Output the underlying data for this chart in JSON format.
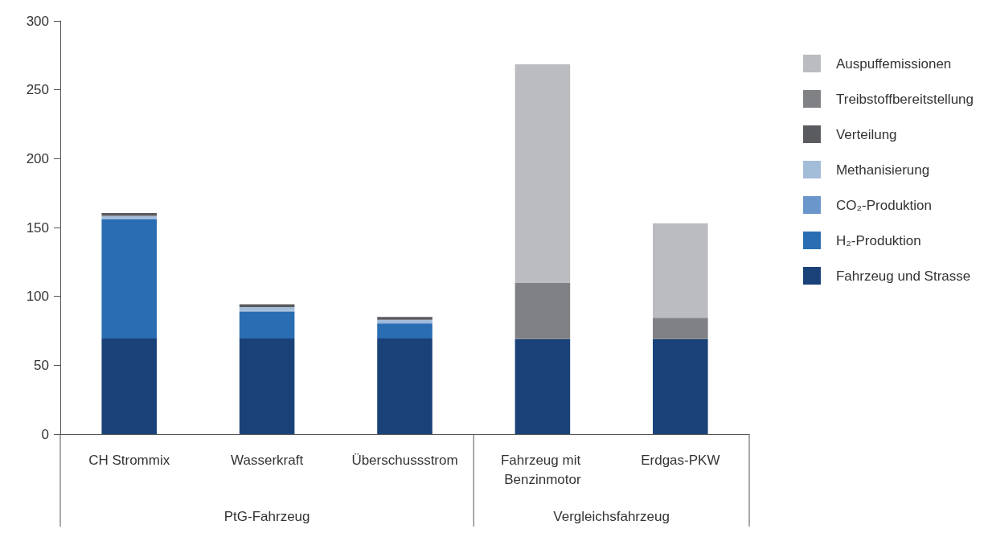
{
  "chart_data": {
    "type": "bar",
    "stacked": true,
    "categories": [
      "CH Strommix",
      "Wasserkraft",
      "Überschussstrom",
      "Fahrzeug mit Benzinmotor",
      "Erdgas-PKW"
    ],
    "series": [
      {
        "name": "Fahrzeug und Strasse",
        "color": "#1a4278",
        "values": [
          69.5,
          69.5,
          69.5,
          69,
          69
        ]
      },
      {
        "name": "H₂-Produktion",
        "color": "#2a6db2",
        "values": [
          86.5,
          19.5,
          10.5,
          null,
          null
        ]
      },
      {
        "name": "CO₂-Produktion",
        "color": "#6a96cc",
        "values": [
          0.5,
          0.5,
          1,
          null,
          null
        ]
      },
      {
        "name": "Methanisierung",
        "color": "#a3bcd8",
        "values": [
          2,
          2.7,
          2,
          null,
          null
        ]
      },
      {
        "name": "Verteilung",
        "color": "#5a5b5e",
        "values": [
          2,
          2,
          2,
          null,
          null
        ]
      },
      {
        "name": "Treibstoffbereitstellung",
        "color": "#808185",
        "values": [
          null,
          null,
          null,
          41,
          15.5
        ]
      },
      {
        "name": "Auspuffemissionen",
        "color": "#bbbcc0",
        "values": [
          null,
          null,
          null,
          158.5,
          68.5
        ]
      }
    ],
    "ylim": [
      0,
      300
    ],
    "yticks": [
      0,
      50,
      100,
      150,
      200,
      250,
      300
    ],
    "grid": false,
    "legend": "right",
    "annotations": [
      "PtG-Fahrzeug",
      "Vergleichsfahrzeug"
    ]
  }
}
